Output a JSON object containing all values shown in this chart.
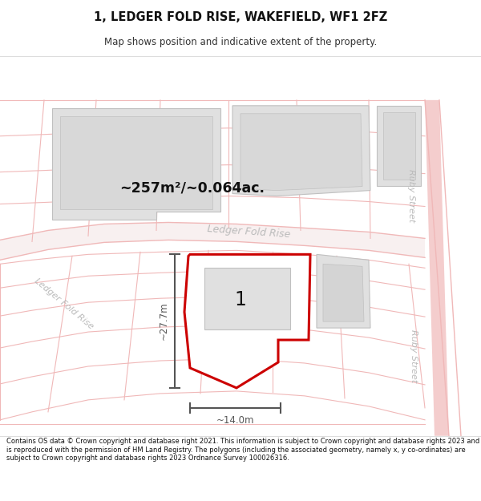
{
  "title": "1, LEDGER FOLD RISE, WAKEFIELD, WF1 2FZ",
  "subtitle": "Map shows position and indicative extent of the property.",
  "area_label": "~257m²/~0.064ac.",
  "dim_height": "~27.7m",
  "dim_width": "~14.0m",
  "plot_number": "1",
  "footer": "Contains OS data © Crown copyright and database right 2021. This information is subject to Crown copyright and database rights 2023 and is reproduced with the permission of HM Land Registry. The polygons (including the associated geometry, namely x, y co-ordinates) are subject to Crown copyright and database rights 2023 Ordnance Survey 100026316.",
  "bg_color": "#ffffff",
  "road_line_color": "#f0b8b8",
  "road_fill_color": "#f5f5f5",
  "plot_fill": "#ffffff",
  "plot_edge": "#cc0000",
  "building_fill": "#e0e0e0",
  "building_edge": "#c0c0c0",
  "dim_color": "#555555",
  "street_text_color": "#bbbbbb",
  "annotation_color": "#111111",
  "title_sep_color": "#dddddd"
}
